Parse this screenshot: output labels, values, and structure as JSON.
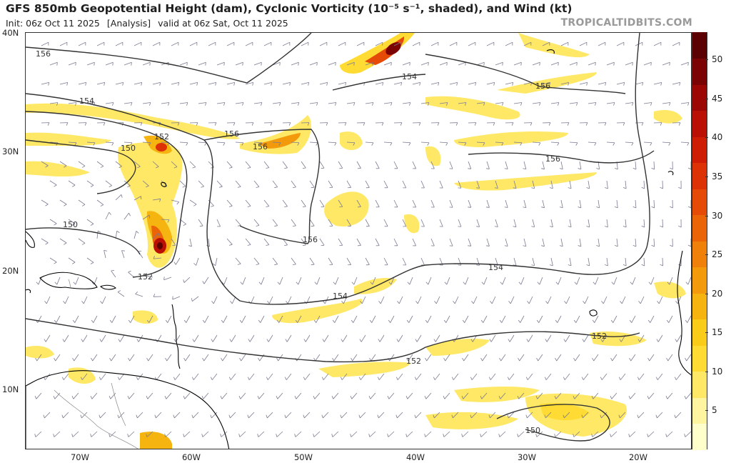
{
  "header": {
    "title": "GFS 850mb Geopotential Height (dam), Cyclonic Vorticity (10⁻⁵ s⁻¹, shaded), and Wind (kt)",
    "init": "Init: 06z Oct 11 2025",
    "analysis": "[Analysis]",
    "valid": "valid at 06z Sat, Oct 11 2025",
    "brand": "TROPICALTIDBITS.COM"
  },
  "axes": {
    "lat_labels": [
      "40N",
      "30N",
      "20N",
      "10N"
    ],
    "lon_labels": [
      "70W",
      "60W",
      "50W",
      "40W",
      "30W",
      "20W"
    ]
  },
  "colorbar": {
    "labels": [
      "50",
      "45",
      "40",
      "35",
      "30",
      "25",
      "20",
      "15",
      "10",
      "5"
    ],
    "colors": [
      "#ffffcc",
      "#fff4a0",
      "#ffe866",
      "#ffdb33",
      "#f9cc1a",
      "#f5b40f",
      "#f29a0c",
      "#ef800a",
      "#eb6408",
      "#e64a07",
      "#dc3206",
      "#cf1d05",
      "#b90f05",
      "#9c0705",
      "#7c0303",
      "#5c0101"
    ]
  },
  "contours": [
    {
      "label": "156"
    },
    {
      "label": "154"
    },
    {
      "label": "152"
    },
    {
      "label": "150"
    }
  ],
  "contour_labels": [
    "156",
    "154",
    "152",
    "156",
    "150",
    "156",
    "154",
    "156",
    "156",
    "150",
    "156",
    "154",
    "152",
    "154",
    "152",
    "152",
    "150"
  ],
  "map_colors": {
    "contour": "#333333",
    "barb": "#7a7a90",
    "coast": "#000000",
    "border": "#888888"
  }
}
